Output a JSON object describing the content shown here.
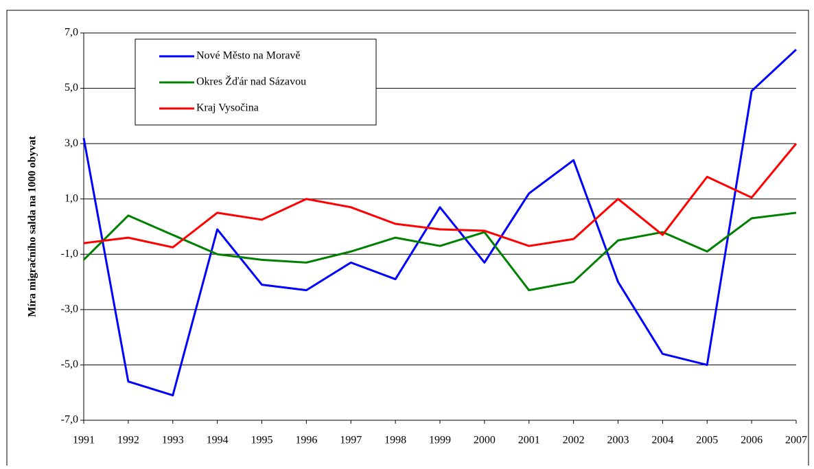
{
  "chart_data": {
    "type": "line",
    "y_label": "Míra migračního salda na 1000 obyvat",
    "categories": [
      "1991",
      "1992",
      "1993",
      "1994",
      "1995",
      "1996",
      "1997",
      "1998",
      "1999",
      "2000",
      "2001",
      "2002",
      "2003",
      "2004",
      "2005",
      "2006",
      "2007"
    ],
    "series": [
      {
        "name": "Nové Město na Moravě",
        "color": "#0000ff",
        "values": [
          3.2,
          -5.6,
          -6.1,
          -0.1,
          -2.1,
          -2.3,
          -1.3,
          -1.9,
          0.7,
          -1.3,
          1.2,
          2.4,
          -2.0,
          -4.6,
          -5.0,
          4.9,
          6.4
        ]
      },
      {
        "name": "Okres Žďár nad Sázavou",
        "color": "#008000",
        "values": [
          -1.2,
          0.4,
          -0.3,
          -1.0,
          -1.2,
          -1.3,
          -0.9,
          -0.4,
          -0.7,
          -0.2,
          -2.3,
          -2.0,
          -0.5,
          -0.2,
          -0.9,
          0.3,
          0.5
        ]
      },
      {
        "name": "Kraj Vysočina",
        "color": "#ff0000",
        "values": [
          -0.6,
          -0.4,
          -0.75,
          0.5,
          0.25,
          1.0,
          0.7,
          0.1,
          -0.1,
          -0.15,
          -0.7,
          -0.45,
          1.0,
          -0.3,
          1.8,
          1.05,
          3.0
        ]
      }
    ],
    "ylim": [
      -7,
      7
    ],
    "yticks": [
      {
        "value": -7,
        "label": "-7,0"
      },
      {
        "value": -5,
        "label": "-5,0"
      },
      {
        "value": -3,
        "label": "-3,0"
      },
      {
        "value": -1,
        "label": "-1,0"
      },
      {
        "value": 1,
        "label": "1,0"
      },
      {
        "value": 3,
        "label": "3,0"
      },
      {
        "value": 5,
        "label": "5,0"
      },
      {
        "value": 7,
        "label": "7,0"
      }
    ],
    "grid": true
  }
}
